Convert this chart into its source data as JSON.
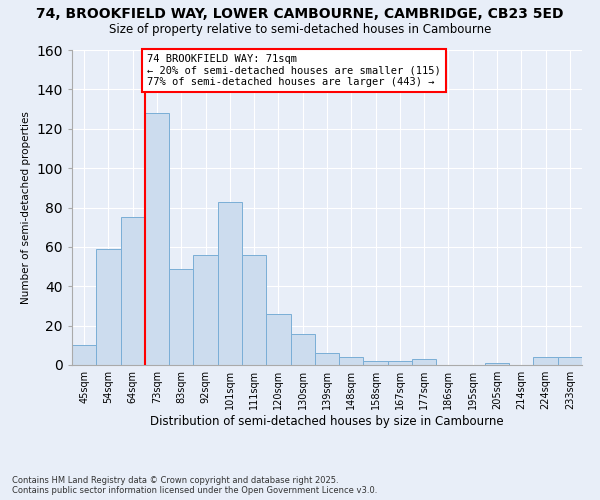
{
  "title1": "74, BROOKFIELD WAY, LOWER CAMBOURNE, CAMBRIDGE, CB23 5ED",
  "title2": "Size of property relative to semi-detached houses in Cambourne",
  "xlabel": "Distribution of semi-detached houses by size in Cambourne",
  "ylabel": "Number of semi-detached properties",
  "categories": [
    "45sqm",
    "54sqm",
    "64sqm",
    "73sqm",
    "83sqm",
    "92sqm",
    "101sqm",
    "111sqm",
    "120sqm",
    "130sqm",
    "139sqm",
    "148sqm",
    "158sqm",
    "167sqm",
    "177sqm",
    "186sqm",
    "195sqm",
    "205sqm",
    "214sqm",
    "224sqm",
    "233sqm"
  ],
  "values": [
    10,
    59,
    75,
    128,
    49,
    56,
    83,
    56,
    26,
    16,
    6,
    4,
    2,
    2,
    3,
    0,
    0,
    1,
    0,
    4,
    4
  ],
  "bar_color": "#ccdcee",
  "bar_edge_color": "#7aaed6",
  "vline_color": "red",
  "annotation_title": "74 BROOKFIELD WAY: 71sqm",
  "annotation_line1": "← 20% of semi-detached houses are smaller (115)",
  "annotation_line2": "77% of semi-detached houses are larger (443) →",
  "annotation_box_color": "red",
  "annotation_bg": "white",
  "ylim": [
    0,
    160
  ],
  "yticks": [
    0,
    20,
    40,
    60,
    80,
    100,
    120,
    140,
    160
  ],
  "footer": "Contains HM Land Registry data © Crown copyright and database right 2025.\nContains public sector information licensed under the Open Government Licence v3.0.",
  "background_color": "#e8eef8",
  "grid_color": "white"
}
